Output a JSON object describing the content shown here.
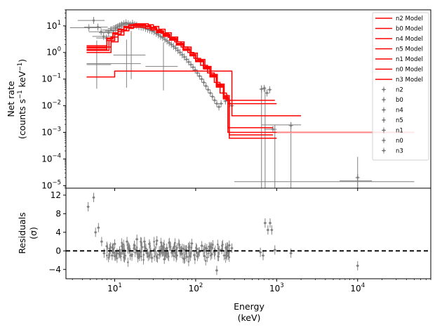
{
  "chart_data": [
    {
      "type": "line",
      "panel": "top",
      "xlabel": "Energy",
      "xlabel_unit": "(keV)",
      "ylabel": "Net rate",
      "ylabel_unit_prefix": "(counts s",
      "ylabel_unit_mid": " keV",
      "ylabel_unit_suffix": ")",
      "ylabel_unit_exp": "−1",
      "x_scale": "log",
      "y_scale": "log",
      "xlim": [
        2.5,
        80000
      ],
      "ylim": [
        8e-06,
        40
      ],
      "y_ticks": [
        {
          "label_base": "10",
          "label_exp": "1",
          "value": 10
        },
        {
          "label_base": "10",
          "label_exp": "0",
          "value": 1
        },
        {
          "label_base": "10",
          "label_exp": "−1",
          "value": 0.1
        },
        {
          "label_base": "10",
          "label_exp": "−2",
          "value": 0.01
        },
        {
          "label_base": "10",
          "label_exp": "−3",
          "value": 0.001
        },
        {
          "label_base": "10",
          "label_exp": "−4",
          "value": 0.0001
        },
        {
          "label_base": "10",
          "label_exp": "−5",
          "value": 1e-05
        }
      ],
      "model_color": "#ff0000",
      "data_color": "#808080",
      "legend_position": "top-right",
      "legend_model_entries": [
        "n2 Model",
        "b0 Model",
        "n4 Model",
        "n5 Model",
        "n1 Model",
        "n0 Model",
        "n3 Model"
      ],
      "legend_data_entries": [
        "n2",
        "b0",
        "n4",
        "n5",
        "n1",
        "n0",
        "n3"
      ],
      "model_series": [
        {
          "name": "n2 Model",
          "x": [
            4.5,
            6.5,
            8,
            9.5,
            11,
            13,
            15,
            17,
            20,
            24,
            28,
            33,
            40,
            48,
            58,
            70,
            85,
            100,
            125,
            150,
            180,
            220,
            250,
            320,
            1000
          ],
          "y": [
            1.8,
            1.8,
            3.5,
            5.5,
            7.5,
            9.5,
            11,
            11.5,
            11,
            10,
            8.5,
            6.5,
            4.8,
            3.4,
            2.2,
            1.4,
            0.85,
            0.5,
            0.28,
            0.14,
            0.06,
            0.022,
            0.012,
            0.012,
            0.012
          ]
        },
        {
          "name": "b0 Model",
          "x": [
            4.5,
            10,
            18,
            250,
            280,
            2000
          ],
          "y": [
            0.12,
            0.2,
            0.2,
            0.2,
            0.0042,
            0.0042
          ]
        },
        {
          "name": "n4 Model",
          "x": [
            4.5,
            6.5,
            8,
            9.5,
            11,
            13,
            15,
            17,
            20,
            24,
            28,
            33,
            40,
            48,
            58,
            70,
            85,
            100,
            125,
            150,
            180,
            220,
            250,
            900
          ],
          "y": [
            1.5,
            1.5,
            3.2,
            5.2,
            7.2,
            9,
            10.5,
            11,
            10.5,
            9.5,
            8,
            6.2,
            4.5,
            3.2,
            2.1,
            1.3,
            0.8,
            0.48,
            0.26,
            0.13,
            0.055,
            0.02,
            0.0015,
            0.0015
          ]
        },
        {
          "name": "n5 Model",
          "x": [
            4.5,
            7,
            9,
            11,
            13,
            15,
            17,
            20,
            24,
            28,
            33,
            40,
            48,
            58,
            70,
            85,
            100,
            125,
            150,
            180,
            220,
            260,
            1000
          ],
          "y": [
            1.0,
            1.0,
            2.5,
            4.5,
            6.5,
            8,
            8.8,
            8.8,
            8,
            7,
            5.5,
            4,
            2.9,
            1.9,
            1.2,
            0.75,
            0.45,
            0.24,
            0.12,
            0.05,
            0.018,
            0.0006,
            0.0006
          ]
        },
        {
          "name": "n1 Model",
          "x": [
            4.5,
            6,
            8,
            10,
            12,
            14,
            17,
            20,
            24,
            28,
            33,
            40,
            48,
            58,
            70,
            85,
            100,
            125,
            150,
            180,
            220,
            250,
            1000,
            50000
          ],
          "y": [
            1.3,
            1.3,
            2.8,
            4.8,
            6.8,
            8.5,
            10,
            10,
            9.2,
            7.8,
            6,
            4.4,
            3.1,
            2,
            1.3,
            0.8,
            0.48,
            0.26,
            0.13,
            0.055,
            0.02,
            0.001,
            0.001,
            0.001
          ]
        },
        {
          "name": "n0 Model",
          "x": [
            4.5,
            7,
            9,
            11,
            13,
            15,
            18,
            22,
            26,
            30,
            35,
            42,
            50,
            60,
            72,
            88,
            105,
            130,
            155,
            185,
            225,
            260,
            900
          ],
          "y": [
            1.6,
            1.6,
            3.8,
            6,
            8.5,
            10.5,
            12,
            12,
            11,
            9.5,
            7.5,
            5.5,
            3.8,
            2.5,
            1.6,
            0.95,
            0.55,
            0.3,
            0.15,
            0.065,
            0.024,
            0.0008,
            0.0008
          ]
        },
        {
          "name": "n3 Model",
          "x": [
            4.5,
            6.5,
            8.5,
            10,
            12,
            14,
            16,
            19,
            23,
            27,
            32,
            38,
            46,
            55,
            66,
            80,
            95,
            115,
            140,
            170,
            200,
            240,
            290,
            950
          ],
          "y": [
            1.2,
            1.2,
            2.8,
            5,
            7,
            9,
            10.5,
            11,
            10.2,
            8.8,
            7,
            5.2,
            3.7,
            2.5,
            1.6,
            1.0,
            0.6,
            0.33,
            0.17,
            0.075,
            0.03,
            0.016,
            0.016,
            0.016
          ]
        }
      ],
      "data_points": {
        "note_units": "energy keV, rate counts/s/keV",
        "x": [
          4.8,
          5.5,
          6.2,
          6.8,
          7.3,
          7.9,
          8.4,
          9.0,
          9.6,
          10.2,
          10.8,
          11.5,
          12.2,
          13.0,
          13.8,
          14.7,
          15.6,
          16.6,
          17.6,
          18.7,
          19.9,
          21.2,
          22.5,
          24.0,
          25.5,
          27.1,
          28.8,
          30.6,
          32.6,
          34.7,
          36.9,
          39.2,
          41.7,
          44.3,
          47.1,
          50.1,
          53.3,
          56.7,
          60.3,
          64.1,
          68.2,
          72.5,
          77.1,
          82.0,
          87.2,
          92.7,
          98.6,
          104.8,
          111.5,
          118.5,
          126.0,
          134.0,
          142.5,
          151.5,
          161.1,
          171.3,
          182.2,
          193.7,
          206,
          219,
          233,
          248,
          263,
          280,
          650,
          700,
          760,
          820,
          900,
          1500,
          10000
        ],
        "y": [
          8.5,
          16,
          9,
          6,
          4,
          3.5,
          5.5,
          7,
          6.5,
          8,
          9,
          10,
          11,
          12,
          13,
          12,
          11,
          12.5,
          11,
          10.5,
          9.5,
          9,
          8.8,
          8,
          7.5,
          7,
          6.5,
          6,
          5.2,
          4.6,
          4,
          3.6,
          3.1,
          2.7,
          2.3,
          2,
          1.7,
          1.45,
          1.2,
          1.0,
          0.82,
          0.68,
          0.55,
          0.44,
          0.35,
          0.28,
          0.22,
          0.17,
          0.13,
          0.1,
          0.075,
          0.055,
          0.04,
          0.03,
          0.022,
          0.016,
          0.012,
          0.009,
          0.012,
          0.03,
          0.015,
          0.02,
          0.012,
          0.01,
          0.042,
          0.045,
          0.03,
          0.04,
          0.0013,
          0.0018,
          2e-05
        ]
      }
    },
    {
      "type": "scatter",
      "panel": "bottom",
      "xlabel": "Energy",
      "xlabel_unit": "(keV)",
      "ylabel": "Residuals",
      "ylabel_unit": "(σ)",
      "x_scale": "log",
      "xlim": [
        2.5,
        80000
      ],
      "ylim": [
        -6,
        13.5
      ],
      "y_ticks": [
        {
          "label": "12",
          "value": 12
        },
        {
          "label": "8",
          "value": 8
        },
        {
          "label": "4",
          "value": 4
        },
        {
          "label": "0",
          "value": 0
        },
        {
          "label": "−4",
          "value": -4
        }
      ],
      "x_ticks": [
        {
          "label_base": "10",
          "label_exp": "1",
          "value": 10
        },
        {
          "label_base": "10",
          "label_exp": "2",
          "value": 100
        },
        {
          "label_base": "10",
          "label_exp": "3",
          "value": 1000
        },
        {
          "label_base": "10",
          "label_exp": "4",
          "value": 10000
        }
      ],
      "zero_line": {
        "y": 0,
        "style": "dashed",
        "color": "#000000"
      },
      "data_color": "#808080",
      "x": [
        4.7,
        5.5,
        5.8,
        6.3,
        6.9,
        7.4,
        8.0,
        8.7,
        9.3,
        10.0,
        10.7,
        11.5,
        12.3,
        13.2,
        14.2,
        15.2,
        16.3,
        17.5,
        18.8,
        20.2,
        21.7,
        23.3,
        25.0,
        26.8,
        28.8,
        30.9,
        33.2,
        35.6,
        38.2,
        41.0,
        44.0,
        47.3,
        50.8,
        54.5,
        58.5,
        62.8,
        67.4,
        72.4,
        77.7,
        83.4,
        89.6,
        96.2,
        103,
        111,
        119,
        128,
        137,
        147,
        158,
        170,
        182,
        196,
        210,
        225,
        242,
        260,
        280,
        630,
        680,
        720,
        780,
        830,
        870,
        950,
        1500,
        10000
      ],
      "y": [
        9.5,
        11.5,
        4.0,
        5.0,
        2.0,
        -0.5,
        1.0,
        0.5,
        -1.0,
        1.5,
        -0.5,
        0.0,
        1.0,
        -1.5,
        2.0,
        0.5,
        -0.8,
        1.2,
        2.5,
        -1.2,
        0.8,
        2.0,
        -0.5,
        1.5,
        -1.5,
        0.3,
        2.2,
        -0.8,
        1.0,
        -1.8,
        0.6,
        1.8,
        -0.4,
        0.9,
        -1.0,
        1.3,
        -0.6,
        0.2,
        -1.3,
        0.7,
        1.6,
        -0.9,
        0.4,
        -0.2,
        1.1,
        -1.1,
        0.5,
        0.9,
        -0.7,
        -0.3,
        -4.2,
        0.1,
        0.3,
        -1.0,
        0.8,
        1.2,
        0.6,
        -0.3,
        -1.0,
        6.0,
        4.5,
        6.0,
        4.5,
        0.2,
        -0.5,
        -3.2
      ]
    }
  ]
}
